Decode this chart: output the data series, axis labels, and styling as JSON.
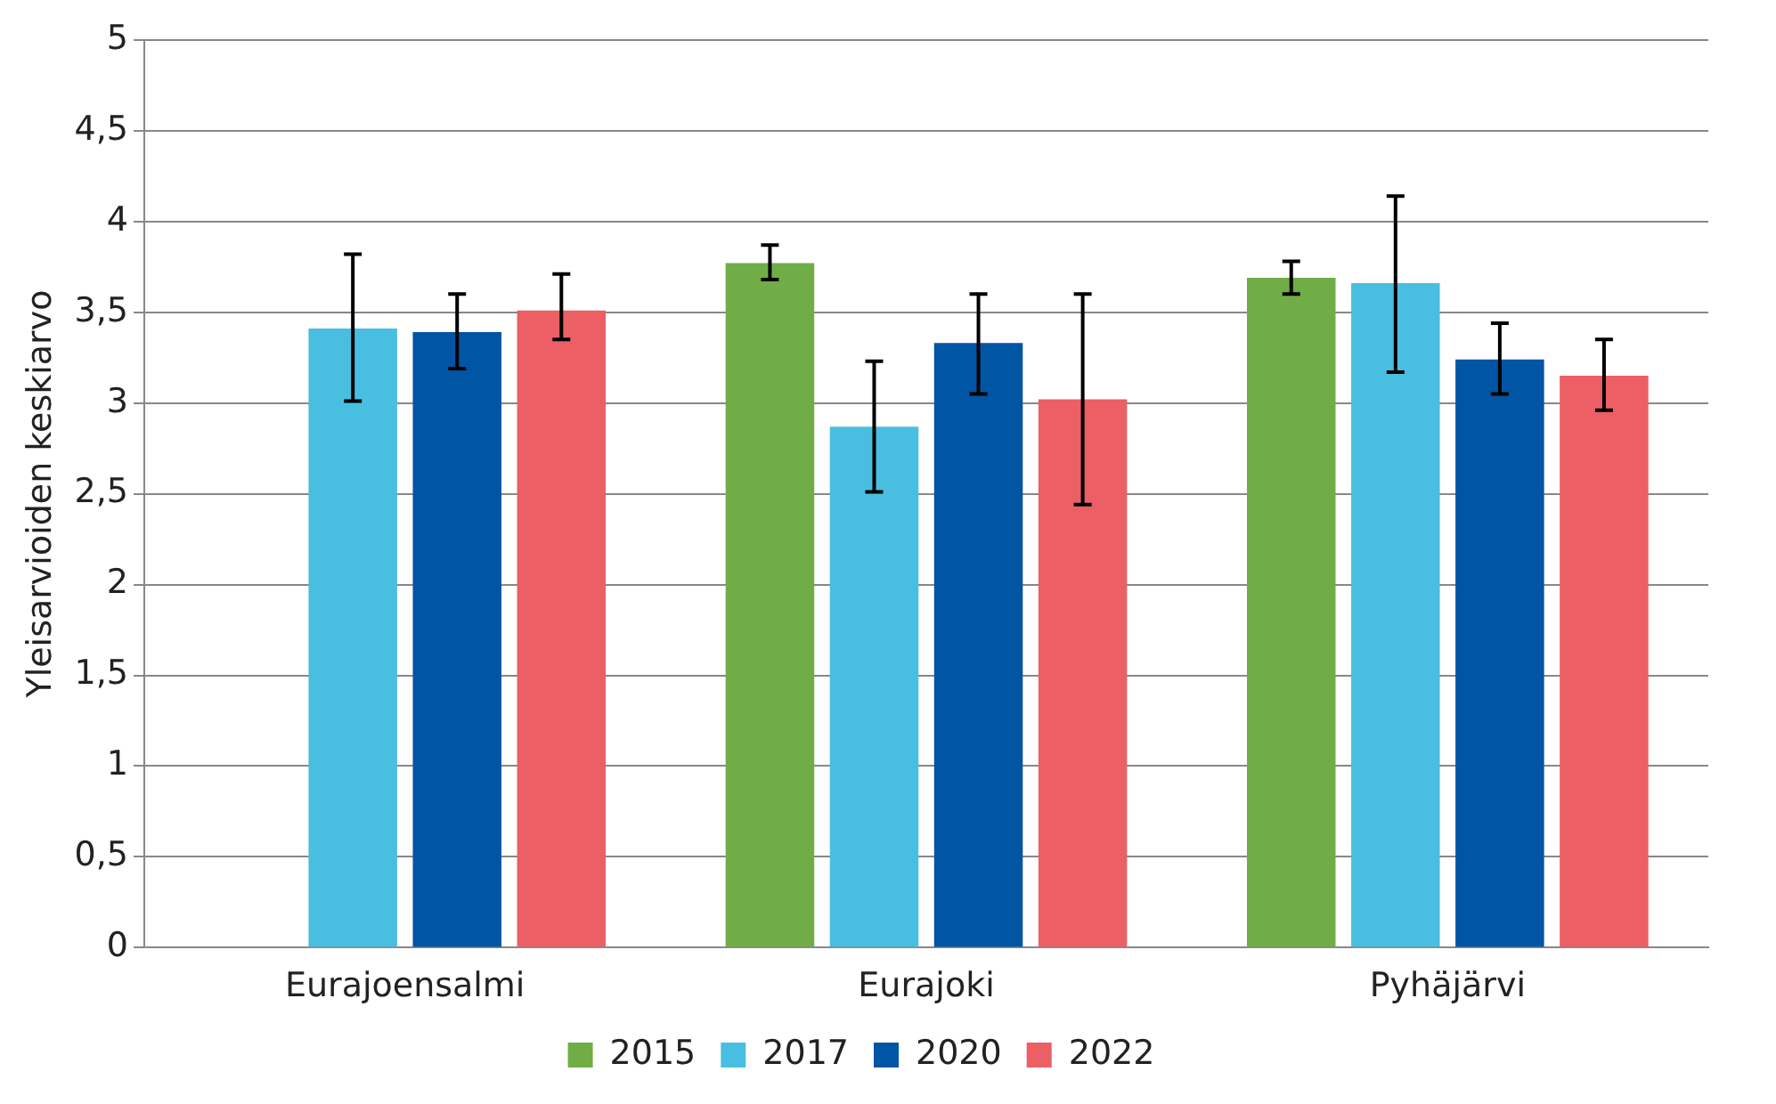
{
  "chart_data": {
    "type": "bar",
    "ylabel": "Yleisarvioiden keskiarvo",
    "categories": [
      "Eurajoensalmi",
      "Eurajoki",
      "Pyhäjärvi"
    ],
    "series": [
      {
        "name": "2015",
        "color": "#70ad47",
        "values": [
          null,
          3.77,
          3.69
        ],
        "errors": [
          null,
          [
            3.68,
            3.87
          ],
          [
            3.6,
            3.78
          ]
        ]
      },
      {
        "name": "2017",
        "color": "#48bfe0",
        "values": [
          3.41,
          2.87,
          3.66
        ],
        "errors": [
          [
            3.01,
            3.82
          ],
          [
            2.51,
            3.23
          ],
          [
            3.17,
            4.14
          ]
        ]
      },
      {
        "name": "2020",
        "color": "#0055a4",
        "values": [
          3.39,
          3.33,
          3.24
        ],
        "errors": [
          [
            3.19,
            3.6
          ],
          [
            3.05,
            3.6
          ],
          [
            3.05,
            3.44
          ]
        ]
      },
      {
        "name": "2022",
        "color": "#eb5f65",
        "values": [
          3.51,
          3.02,
          3.15
        ],
        "errors": [
          [
            3.35,
            3.71
          ],
          [
            2.44,
            3.6
          ],
          [
            2.96,
            3.35
          ]
        ]
      }
    ],
    "ylim": [
      0,
      5
    ],
    "yticks": [
      0,
      {
        "value": 0.5,
        "label": "0,5"
      },
      1,
      {
        "value": 1.5,
        "label": "1,5"
      },
      2,
      {
        "value": 2.5,
        "label": "2,5"
      },
      3,
      {
        "value": 3.5,
        "label": "3,5"
      },
      4,
      {
        "value": 4.5,
        "label": "4,5"
      },
      5
    ],
    "grid": "y",
    "legend": "bottom"
  }
}
